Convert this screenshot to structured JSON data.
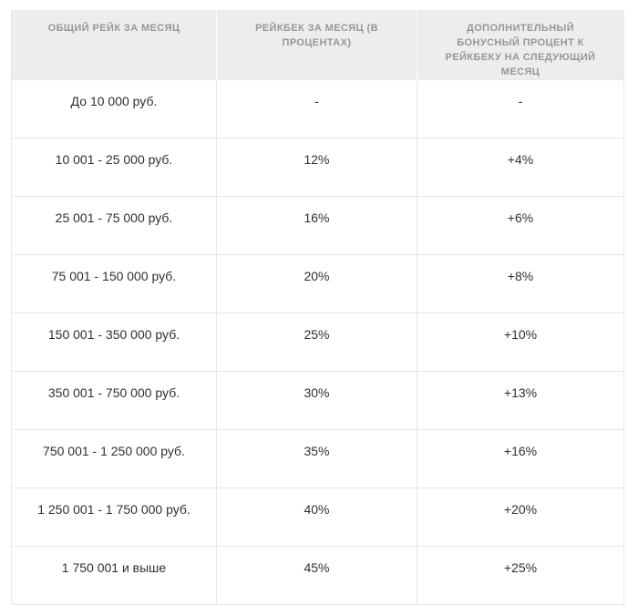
{
  "table": {
    "headers": [
      "ОБЩИЙ РЕЙК ЗА МЕСЯЦ",
      "РЕЙКБЕК ЗА МЕСЯЦ (В ПРОЦЕНТАХ)",
      "ДОПОЛНИТЕЛЬНЫЙ БОНУСНЫЙ ПРОЦЕНТ К РЕЙКБЕКУ НА СЛЕДУЮЩИЙ МЕСЯЦ"
    ],
    "rows": [
      [
        "До 10 000 руб.",
        "-",
        "-"
      ],
      [
        "10 001 - 25 000 руб.",
        "12%",
        "+4%"
      ],
      [
        "25 001 - 75 000 руб.",
        "16%",
        "+6%"
      ],
      [
        "75 001 - 150 000 руб.",
        "20%",
        "+8%"
      ],
      [
        "150 001 - 350 000 руб.",
        "25%",
        "+10%"
      ],
      [
        "350 001 - 750 000 руб.",
        "30%",
        "+13%"
      ],
      [
        "750 001 - 1 250 000 руб.",
        "35%",
        "+16%"
      ],
      [
        "1 250 001 - 1 750 000 руб.",
        "40%",
        "+20%"
      ],
      [
        "1 750 001 и выше",
        "45%",
        "+25%"
      ]
    ],
    "colors": {
      "header_background": "#ededed",
      "header_text": "#979797",
      "body_text": "#303030",
      "border": "#e7e7e7",
      "header_divider": "#fcfcfc"
    }
  }
}
